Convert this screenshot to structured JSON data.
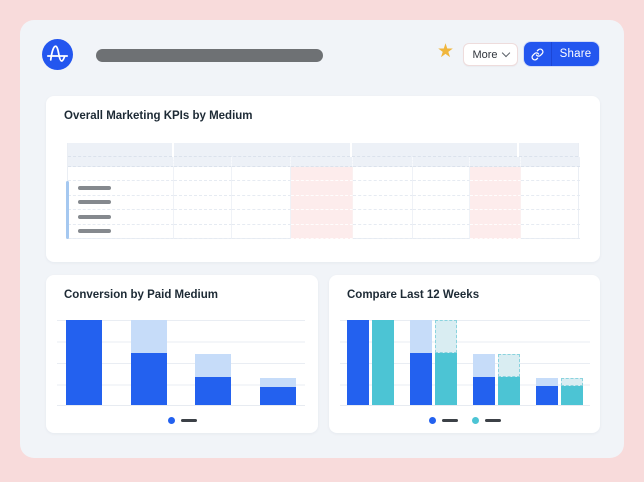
{
  "colors": {
    "page_background": "#f8dbdb",
    "card_background": "#f1f4f8",
    "panel_background": "#ffffff",
    "accent_blue": "#2356ef",
    "bar_dark_blue": "#2361ef",
    "bar_light_blue": "#c6dcf9",
    "bar_teal": "#4cc4d4",
    "bar_light_teal": "#d9edf2",
    "star_gold": "#f0b63d",
    "table_header": "#edf1f7",
    "table_highlight_pink": "#fdecec",
    "legend_dash": "#3c4147"
  },
  "topbar": {
    "logo": "amplitude-logo",
    "more_label": "More",
    "share_label": "Share"
  },
  "panels": {
    "kpi": {
      "title": "Overall Marketing KPIs by Medium"
    }
  },
  "kpi_table": {
    "columns": [
      106,
      58,
      59,
      62,
      60,
      57,
      51,
      59
    ],
    "header_groups": [
      [
        0,
        0
      ],
      [
        1,
        3
      ],
      [
        4,
        6
      ],
      [
        7,
        7
      ]
    ],
    "highlight_columns": [
      3,
      6
    ],
    "body_rows": 5,
    "placeholder_rows": [
      1,
      2,
      3,
      4
    ],
    "selection_strip": {
      "start_row": 1,
      "end_row": 4
    }
  },
  "chart_data": [
    {
      "type": "bar",
      "title": "Conversion by Paid Medium",
      "stacked": true,
      "xlabel": "",
      "ylabel": "",
      "ylim": [
        0,
        100
      ],
      "grid": true,
      "gridline_levels_pct": [
        0,
        25,
        50,
        75,
        100
      ],
      "legend_position": "bottom-center",
      "groups": [
        {
          "bars": [
            {
              "name": "bar-1",
              "segments": [
                {
                  "series": "converted",
                  "color": "#2361ef",
                  "value": 100
                }
              ]
            }
          ]
        },
        {
          "bars": [
            {
              "name": "bar-2",
              "segments": [
                {
                  "series": "converted",
                  "color": "#2361ef",
                  "value": 61
                },
                {
                  "series": "remainder",
                  "color": "#c6dcf9",
                  "value": 39
                }
              ]
            }
          ]
        },
        {
          "bars": [
            {
              "name": "bar-3",
              "segments": [
                {
                  "series": "converted",
                  "color": "#2361ef",
                  "value": 33
                },
                {
                  "series": "remainder",
                  "color": "#c6dcf9",
                  "value": 27
                }
              ]
            }
          ]
        },
        {
          "bars": [
            {
              "name": "bar-4",
              "segments": [
                {
                  "series": "converted",
                  "color": "#2361ef",
                  "value": 21
                },
                {
                  "series": "remainder",
                  "color": "#c6dcf9",
                  "value": 11
                }
              ]
            }
          ]
        }
      ],
      "legend": [
        {
          "marker_color": "#2361ef",
          "dash_color": "#3c4147"
        }
      ]
    },
    {
      "type": "bar",
      "title": "Compare Last 12 Weeks",
      "stacked": true,
      "grouped": true,
      "xlabel": "",
      "ylabel": "",
      "ylim": [
        0,
        100
      ],
      "grid": true,
      "gridline_levels_pct": [
        0,
        25,
        50,
        75,
        100
      ],
      "legend_position": "bottom-center",
      "groups": [
        {
          "bars": [
            {
              "name": "current-bar-1",
              "segments": [
                {
                  "series": "current-converted",
                  "color": "#2361ef",
                  "value": 100
                }
              ]
            },
            {
              "name": "previous-bar-1",
              "segments": [
                {
                  "series": "previous-converted",
                  "color": "#4cc4d4",
                  "value": 100
                }
              ]
            }
          ]
        },
        {
          "bars": [
            {
              "name": "current-bar-2",
              "segments": [
                {
                  "series": "current-converted",
                  "color": "#2361ef",
                  "value": 61
                },
                {
                  "series": "current-remainder",
                  "color": "#c6dcf9",
                  "value": 39
                }
              ]
            },
            {
              "name": "previous-bar-2",
              "segments": [
                {
                  "series": "previous-converted",
                  "color": "#4cc4d4",
                  "value": 61
                },
                {
                  "series": "previous-remainder",
                  "color": "#d9edf2",
                  "value": 39,
                  "dashed": true
                }
              ]
            }
          ]
        },
        {
          "bars": [
            {
              "name": "current-bar-3",
              "segments": [
                {
                  "series": "current-converted",
                  "color": "#2361ef",
                  "value": 33
                },
                {
                  "series": "current-remainder",
                  "color": "#c6dcf9",
                  "value": 27
                }
              ]
            },
            {
              "name": "previous-bar-3",
              "segments": [
                {
                  "series": "previous-converted",
                  "color": "#4cc4d4",
                  "value": 33
                },
                {
                  "series": "previous-remainder",
                  "color": "#d9edf2",
                  "value": 27,
                  "dashed": true
                }
              ]
            }
          ]
        },
        {
          "bars": [
            {
              "name": "current-bar-4",
              "segments": [
                {
                  "series": "current-converted",
                  "color": "#2361ef",
                  "value": 22
                },
                {
                  "series": "current-remainder",
                  "color": "#c6dcf9",
                  "value": 10
                }
              ]
            },
            {
              "name": "previous-bar-4",
              "segments": [
                {
                  "series": "previous-converted",
                  "color": "#4cc4d4",
                  "value": 22
                },
                {
                  "series": "previous-remainder",
                  "color": "#d9edf2",
                  "value": 10,
                  "dashed": true
                }
              ]
            }
          ]
        }
      ],
      "legend": [
        {
          "marker_color": "#2361ef",
          "dash_color": "#3c4147"
        },
        {
          "marker_color": "#4cc4d4",
          "dash_color": "#3c4147"
        }
      ]
    }
  ]
}
